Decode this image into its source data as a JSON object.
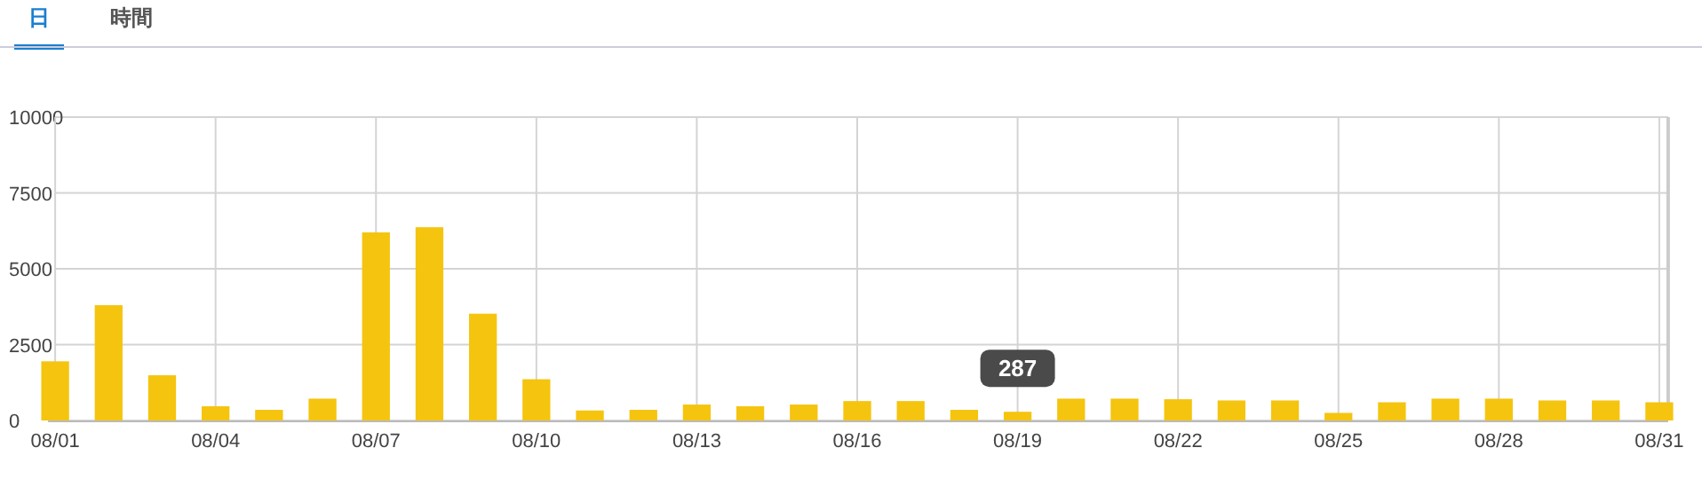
{
  "chart_data": {
    "type": "bar",
    "categories": [
      "08/01",
      null,
      null,
      "08/04",
      null,
      null,
      "08/07",
      null,
      null,
      "08/10",
      null,
      null,
      "08/13",
      null,
      null,
      "08/16",
      null,
      null,
      "08/19",
      null,
      null,
      "08/22",
      null,
      null,
      "08/25",
      null,
      null,
      "08/28",
      null,
      null,
      "08/31"
    ],
    "values": [
      1950,
      3800,
      1490,
      470,
      350,
      720,
      6200,
      6370,
      3520,
      1360,
      330,
      350,
      525,
      470,
      525,
      640,
      640,
      350,
      287,
      720,
      720,
      700,
      660,
      660,
      250,
      600,
      720,
      720,
      660,
      660,
      600
    ],
    "color": "#f5c40f",
    "ylim": [
      0,
      10000
    ],
    "yticks": [
      0,
      2500,
      5000,
      7500,
      10000
    ],
    "grid": true,
    "annotations": [
      "日",
      "時間",
      {
        "text": "287",
        "x": "08/19",
        "y": 287
      }
    ]
  }
}
